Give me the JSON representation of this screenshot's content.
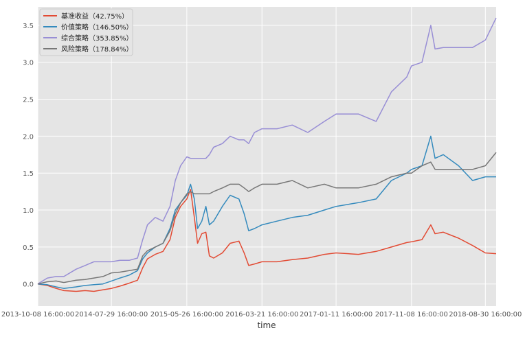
{
  "chart_data": {
    "type": "line",
    "title": "",
    "xlabel": "time",
    "ylabel": "",
    "grid": true,
    "legend_position": "top-left",
    "x_range": [
      "2013-10-08 16:00:00",
      "2018-10-12 16:00:00"
    ],
    "ylim": [
      -0.3,
      3.75
    ],
    "x_ticks": [
      "2013-10-08 16:00:00",
      "2014-07-29 16:00:00",
      "2015-05-26 16:00:00",
      "2016-03-21 16:00:00",
      "2017-01-11 16:00:00",
      "2017-11-08 16:00:00",
      "2018-08-30 16:00:00"
    ],
    "y_ticks": [
      0.0,
      0.5,
      1.0,
      1.5,
      2.0,
      2.5,
      3.0,
      3.5
    ],
    "y_tick_labels": [
      "0.0",
      "0.5",
      "1.0",
      "1.5",
      "2.0",
      "2.5",
      "3.0",
      "3.5"
    ],
    "series": [
      {
        "name": "基准收益（42.75%）",
        "color": "#E24A33",
        "points": [
          [
            "2013-10-08",
            0.0
          ],
          [
            "2013-11-15",
            -0.02
          ],
          [
            "2013-12-20",
            -0.06
          ],
          [
            "2014-01-20",
            -0.09
          ],
          [
            "2014-03-10",
            -0.1
          ],
          [
            "2014-04-15",
            -0.09
          ],
          [
            "2014-05-20",
            -0.1
          ],
          [
            "2014-06-25",
            -0.08
          ],
          [
            "2014-07-29",
            -0.06
          ],
          [
            "2014-09-01",
            -0.03
          ],
          [
            "2014-10-08",
            0.01
          ],
          [
            "2014-11-10",
            0.05
          ],
          [
            "2014-12-01",
            0.22
          ],
          [
            "2014-12-20",
            0.34
          ],
          [
            "2015-01-20",
            0.4
          ],
          [
            "2015-02-20",
            0.44
          ],
          [
            "2015-03-20",
            0.6
          ],
          [
            "2015-04-10",
            0.9
          ],
          [
            "2015-05-01",
            1.05
          ],
          [
            "2015-05-26",
            1.15
          ],
          [
            "2015-06-10",
            1.28
          ],
          [
            "2015-06-25",
            0.9
          ],
          [
            "2015-07-08",
            0.55
          ],
          [
            "2015-07-25",
            0.68
          ],
          [
            "2015-08-10",
            0.7
          ],
          [
            "2015-08-24",
            0.38
          ],
          [
            "2015-09-10",
            0.35
          ],
          [
            "2015-10-15",
            0.42
          ],
          [
            "2015-11-15",
            0.55
          ],
          [
            "2015-12-20",
            0.58
          ],
          [
            "2016-01-10",
            0.42
          ],
          [
            "2016-01-28",
            0.25
          ],
          [
            "2016-02-20",
            0.27
          ],
          [
            "2016-03-21",
            0.3
          ],
          [
            "2016-05-20",
            0.3
          ],
          [
            "2016-07-20",
            0.33
          ],
          [
            "2016-09-20",
            0.35
          ],
          [
            "2016-11-25",
            0.4
          ],
          [
            "2017-01-11",
            0.42
          ],
          [
            "2017-04-10",
            0.4
          ],
          [
            "2017-06-20",
            0.44
          ],
          [
            "2017-08-20",
            0.5
          ],
          [
            "2017-10-20",
            0.56
          ],
          [
            "2017-11-08",
            0.57
          ],
          [
            "2017-12-20",
            0.6
          ],
          [
            "2018-01-24",
            0.8
          ],
          [
            "2018-02-10",
            0.68
          ],
          [
            "2018-03-15",
            0.7
          ],
          [
            "2018-05-15",
            0.62
          ],
          [
            "2018-07-10",
            0.52
          ],
          [
            "2018-08-30",
            0.42
          ],
          [
            "2018-10-12",
            0.41
          ]
        ]
      },
      {
        "name": "价值策略（146.50%）",
        "color": "#348ABD",
        "points": [
          [
            "2013-10-08",
            0.0
          ],
          [
            "2013-11-15",
            -0.01
          ],
          [
            "2013-12-20",
            -0.04
          ],
          [
            "2014-01-20",
            -0.06
          ],
          [
            "2014-03-10",
            -0.04
          ],
          [
            "2014-04-15",
            -0.02
          ],
          [
            "2014-05-20",
            -0.01
          ],
          [
            "2014-06-25",
            0.0
          ],
          [
            "2014-07-29",
            0.04
          ],
          [
            "2014-09-01",
            0.08
          ],
          [
            "2014-10-08",
            0.12
          ],
          [
            "2014-11-10",
            0.18
          ],
          [
            "2014-12-01",
            0.34
          ],
          [
            "2014-12-20",
            0.42
          ],
          [
            "2015-01-20",
            0.5
          ],
          [
            "2015-02-20",
            0.55
          ],
          [
            "2015-03-20",
            0.75
          ],
          [
            "2015-04-10",
            1.0
          ],
          [
            "2015-05-01",
            1.1
          ],
          [
            "2015-05-26",
            1.2
          ],
          [
            "2015-06-10",
            1.35
          ],
          [
            "2015-06-25",
            1.15
          ],
          [
            "2015-07-08",
            0.75
          ],
          [
            "2015-07-25",
            0.85
          ],
          [
            "2015-08-10",
            1.05
          ],
          [
            "2015-08-24",
            0.8
          ],
          [
            "2015-09-10",
            0.85
          ],
          [
            "2015-10-15",
            1.05
          ],
          [
            "2015-11-15",
            1.2
          ],
          [
            "2015-12-20",
            1.15
          ],
          [
            "2016-01-10",
            0.95
          ],
          [
            "2016-01-28",
            0.72
          ],
          [
            "2016-02-20",
            0.75
          ],
          [
            "2016-03-21",
            0.8
          ],
          [
            "2016-05-20",
            0.85
          ],
          [
            "2016-07-20",
            0.9
          ],
          [
            "2016-09-20",
            0.93
          ],
          [
            "2016-11-25",
            1.0
          ],
          [
            "2017-01-11",
            1.05
          ],
          [
            "2017-04-10",
            1.1
          ],
          [
            "2017-06-20",
            1.15
          ],
          [
            "2017-08-20",
            1.4
          ],
          [
            "2017-10-20",
            1.5
          ],
          [
            "2017-11-08",
            1.55
          ],
          [
            "2017-12-20",
            1.6
          ],
          [
            "2018-01-24",
            2.0
          ],
          [
            "2018-02-10",
            1.7
          ],
          [
            "2018-03-15",
            1.75
          ],
          [
            "2018-05-15",
            1.6
          ],
          [
            "2018-07-10",
            1.4
          ],
          [
            "2018-08-30",
            1.45
          ],
          [
            "2018-10-12",
            1.45
          ]
        ]
      },
      {
        "name": "综合策略（353.85%）",
        "color": "#988ED5",
        "points": [
          [
            "2013-10-08",
            0.0
          ],
          [
            "2013-11-15",
            0.08
          ],
          [
            "2013-12-20",
            0.1
          ],
          [
            "2014-01-20",
            0.1
          ],
          [
            "2014-03-10",
            0.2
          ],
          [
            "2014-04-15",
            0.25
          ],
          [
            "2014-05-20",
            0.3
          ],
          [
            "2014-06-25",
            0.3
          ],
          [
            "2014-07-29",
            0.3
          ],
          [
            "2014-09-01",
            0.32
          ],
          [
            "2014-10-08",
            0.32
          ],
          [
            "2014-11-10",
            0.35
          ],
          [
            "2014-12-01",
            0.6
          ],
          [
            "2014-12-20",
            0.8
          ],
          [
            "2015-01-20",
            0.9
          ],
          [
            "2015-02-20",
            0.85
          ],
          [
            "2015-03-20",
            1.05
          ],
          [
            "2015-04-10",
            1.4
          ],
          [
            "2015-05-01",
            1.6
          ],
          [
            "2015-05-26",
            1.72
          ],
          [
            "2015-06-10",
            1.7
          ],
          [
            "2015-06-25",
            1.7
          ],
          [
            "2015-07-08",
            1.7
          ],
          [
            "2015-07-25",
            1.7
          ],
          [
            "2015-08-10",
            1.7
          ],
          [
            "2015-08-24",
            1.75
          ],
          [
            "2015-09-10",
            1.85
          ],
          [
            "2015-10-15",
            1.9
          ],
          [
            "2015-11-15",
            2.0
          ],
          [
            "2015-12-20",
            1.95
          ],
          [
            "2016-01-10",
            1.95
          ],
          [
            "2016-01-28",
            1.9
          ],
          [
            "2016-02-20",
            2.05
          ],
          [
            "2016-03-21",
            2.1
          ],
          [
            "2016-05-20",
            2.1
          ],
          [
            "2016-07-20",
            2.15
          ],
          [
            "2016-09-20",
            2.05
          ],
          [
            "2016-11-25",
            2.2
          ],
          [
            "2017-01-11",
            2.3
          ],
          [
            "2017-04-10",
            2.3
          ],
          [
            "2017-06-20",
            2.2
          ],
          [
            "2017-08-20",
            2.6
          ],
          [
            "2017-10-20",
            2.8
          ],
          [
            "2017-11-08",
            2.95
          ],
          [
            "2017-12-20",
            3.0
          ],
          [
            "2018-01-24",
            3.5
          ],
          [
            "2018-02-10",
            3.18
          ],
          [
            "2018-03-15",
            3.2
          ],
          [
            "2018-05-15",
            3.2
          ],
          [
            "2018-07-10",
            3.2
          ],
          [
            "2018-08-30",
            3.3
          ],
          [
            "2018-10-12",
            3.6
          ]
        ]
      },
      {
        "name": "风险策略（178.84%）",
        "color": "#777777",
        "points": [
          [
            "2013-10-08",
            0.0
          ],
          [
            "2013-11-15",
            0.03
          ],
          [
            "2013-12-20",
            0.04
          ],
          [
            "2014-01-20",
            0.02
          ],
          [
            "2014-03-10",
            0.05
          ],
          [
            "2014-04-15",
            0.06
          ],
          [
            "2014-05-20",
            0.08
          ],
          [
            "2014-06-25",
            0.1
          ],
          [
            "2014-07-29",
            0.15
          ],
          [
            "2014-09-01",
            0.16
          ],
          [
            "2014-10-08",
            0.18
          ],
          [
            "2014-11-10",
            0.2
          ],
          [
            "2014-12-01",
            0.38
          ],
          [
            "2014-12-20",
            0.45
          ],
          [
            "2015-01-20",
            0.5
          ],
          [
            "2015-02-20",
            0.55
          ],
          [
            "2015-03-20",
            0.72
          ],
          [
            "2015-04-10",
            0.95
          ],
          [
            "2015-05-01",
            1.1
          ],
          [
            "2015-05-26",
            1.22
          ],
          [
            "2015-06-10",
            1.25
          ],
          [
            "2015-06-25",
            1.22
          ],
          [
            "2015-07-08",
            1.22
          ],
          [
            "2015-07-25",
            1.22
          ],
          [
            "2015-08-10",
            1.22
          ],
          [
            "2015-08-24",
            1.22
          ],
          [
            "2015-09-10",
            1.25
          ],
          [
            "2015-10-15",
            1.3
          ],
          [
            "2015-11-15",
            1.35
          ],
          [
            "2015-12-20",
            1.35
          ],
          [
            "2016-01-10",
            1.3
          ],
          [
            "2016-01-28",
            1.25
          ],
          [
            "2016-02-20",
            1.3
          ],
          [
            "2016-03-21",
            1.35
          ],
          [
            "2016-05-20",
            1.35
          ],
          [
            "2016-07-20",
            1.4
          ],
          [
            "2016-09-20",
            1.3
          ],
          [
            "2016-11-25",
            1.35
          ],
          [
            "2017-01-11",
            1.3
          ],
          [
            "2017-04-10",
            1.3
          ],
          [
            "2017-06-20",
            1.35
          ],
          [
            "2017-08-20",
            1.45
          ],
          [
            "2017-10-20",
            1.5
          ],
          [
            "2017-11-08",
            1.5
          ],
          [
            "2017-12-20",
            1.6
          ],
          [
            "2018-01-24",
            1.65
          ],
          [
            "2018-02-10",
            1.55
          ],
          [
            "2018-03-15",
            1.55
          ],
          [
            "2018-05-15",
            1.55
          ],
          [
            "2018-07-10",
            1.55
          ],
          [
            "2018-08-30",
            1.6
          ],
          [
            "2018-10-12",
            1.78
          ]
        ]
      }
    ]
  }
}
